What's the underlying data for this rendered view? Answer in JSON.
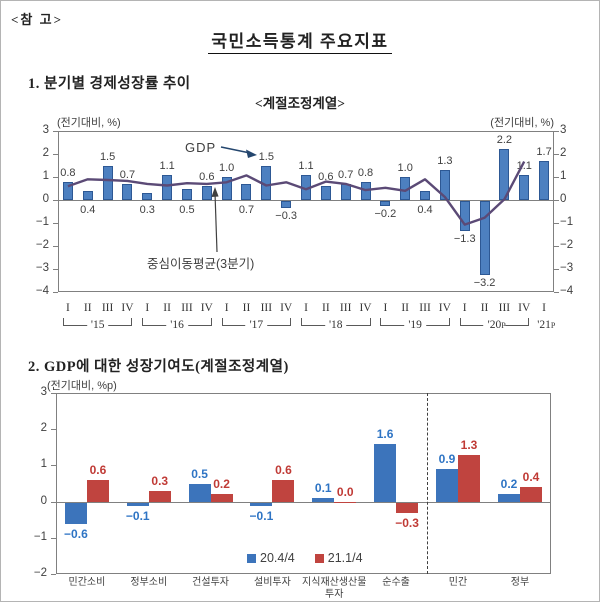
{
  "page": {
    "ref_note": "<참 고>",
    "title": "국민소득통계 주요지표"
  },
  "section1": {
    "heading": "1. 분기별 경제성장률 추이",
    "subtitle": "<계절조정계열>"
  },
  "section2": {
    "heading": "2. GDP에 대한 성장기여도(계절조정계열)"
  },
  "colors": {
    "c1_bar_fill": "#4d80c0",
    "c1_bar_border": "#2d5894",
    "c1_line": "#5b4a76",
    "c1_value_text": "#404040",
    "axis_text": "#3f3f3f",
    "axis_line": "#808080",
    "annotation_arrow": "#24466e",
    "bracket": "#595959",
    "c2_blue": "#3c74bb",
    "c2_red": "#c0443f",
    "c2_blue_text": "#2e74c4",
    "c2_red_text": "#c03a35",
    "separator": "#404040"
  },
  "chart_data": [
    {
      "id": "quarterly-gdp-growth",
      "type": "bar",
      "title": "분기별 경제성장률 추이 <계절조정계열>",
      "unit_label_left": "(전기대비, %)",
      "unit_label_right": "(전기대비, %)",
      "ylim": [
        -4,
        3
      ],
      "yticks": [
        3,
        2,
        1,
        0,
        -1,
        -2,
        -3,
        -4
      ],
      "grid": false,
      "x_quarter_labels": [
        "I",
        "II",
        "III",
        "IV",
        "I",
        "II",
        "III",
        "IV",
        "I",
        "II",
        "III",
        "IV",
        "I",
        "II",
        "III",
        "IV",
        "I",
        "II",
        "III",
        "IV",
        "I",
        "II",
        "III",
        "IV",
        "I"
      ],
      "years": [
        {
          "label": "'15",
          "sup": "",
          "count": 4
        },
        {
          "label": "'16",
          "sup": "",
          "count": 4
        },
        {
          "label": "'17",
          "sup": "",
          "count": 4
        },
        {
          "label": "'18",
          "sup": "",
          "count": 4
        },
        {
          "label": "'19",
          "sup": "",
          "count": 4
        },
        {
          "label": "'20",
          "sup": "P",
          "count": 4
        },
        {
          "label": "'21",
          "sup": "P",
          "count": 1
        }
      ],
      "bar_series": {
        "name": "GDP",
        "values": [
          0.8,
          0.4,
          1.5,
          0.7,
          0.3,
          1.1,
          0.5,
          0.6,
          1.0,
          0.7,
          1.5,
          -0.3,
          1.1,
          0.6,
          0.7,
          0.8,
          -0.2,
          1.0,
          0.4,
          1.3,
          -1.3,
          -3.2,
          2.2,
          1.1,
          1.7
        ]
      },
      "line_series": {
        "name": "중심이동평균(3분기)",
        "values": [
          0.6,
          0.9,
          0.87,
          0.83,
          0.7,
          0.63,
          0.73,
          0.7,
          0.77,
          1.07,
          0.63,
          0.77,
          0.47,
          0.8,
          0.7,
          0.43,
          0.53,
          0.4,
          0.9,
          0.13,
          -1.07,
          -0.77,
          0.03,
          1.67,
          null
        ]
      },
      "positive_labels_below_zero_idx": [
        1,
        4,
        6,
        9,
        18
      ],
      "annotations": {
        "gdp": "GDP",
        "ma": "중심이동평균(3분기)"
      }
    },
    {
      "id": "growth-contribution",
      "type": "bar",
      "title": "GDP에 대한 성장기여도(계절조정계열)",
      "unit_label": "(전기대비, %p)",
      "ylim": [
        -2,
        3
      ],
      "yticks": [
        3,
        2,
        1,
        0,
        -1,
        -2
      ],
      "grid": false,
      "legend_position": "bottom-inside",
      "categories": [
        "민간소비",
        "정부소비",
        "건설투자",
        "설비투자",
        "지식재산생산물\n투자",
        "순수출",
        "민간",
        "정부"
      ],
      "series": [
        {
          "name": "20.4/4",
          "values": [
            -0.6,
            -0.1,
            0.5,
            -0.1,
            0.1,
            1.6,
            0.9,
            0.2
          ]
        },
        {
          "name": "21.1/4",
          "values": [
            0.6,
            0.3,
            0.2,
            0.6,
            0.0,
            -0.3,
            1.3,
            0.4
          ]
        }
      ],
      "separator_after": 6
    }
  ]
}
